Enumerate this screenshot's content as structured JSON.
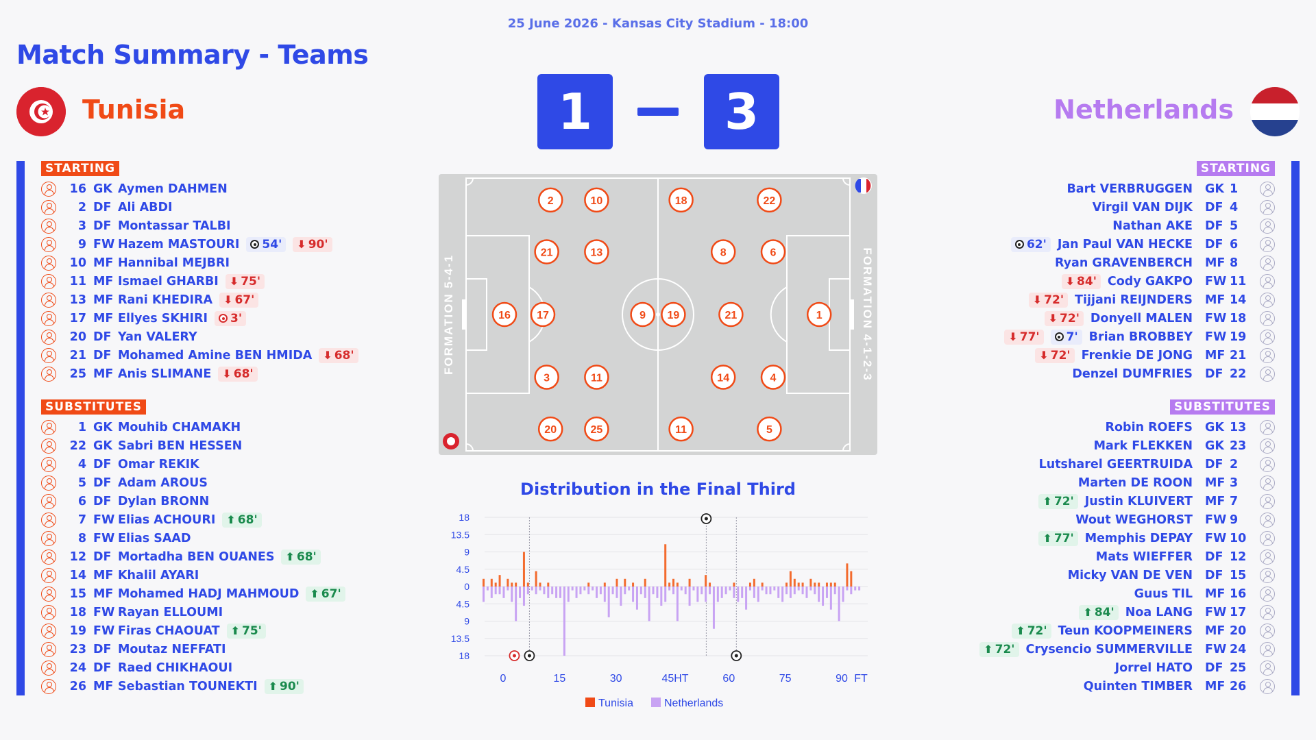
{
  "match": {
    "meta": "25 June 2026 - Kansas City Stadium - 18:00",
    "title": "Match Summary - Teams",
    "home_name": "Tunisia",
    "away_name": "Netherlands",
    "home_score": "1",
    "away_score": "3"
  },
  "labels": {
    "home_starting": "STARTING",
    "home_subs": "SUBSTITUTES",
    "away_starting": "STARTING",
    "away_subs": "SUBSTITUTES"
  },
  "colors": {
    "accent": "#2f49e6",
    "home": "#f04a16",
    "away": "#b67bf0"
  },
  "home": {
    "starting": [
      {
        "num": "16",
        "pos": "GK",
        "name": "Aymen DAHMEN",
        "events": []
      },
      {
        "num": "2",
        "pos": "DF",
        "name": "Ali ABDI",
        "events": []
      },
      {
        "num": "3",
        "pos": "DF",
        "name": "Montassar TALBI",
        "events": []
      },
      {
        "num": "9",
        "pos": "FW",
        "name": "Hazem MASTOURI",
        "events": [
          {
            "type": "goal",
            "text": "54'"
          },
          {
            "type": "out",
            "text": "90'"
          }
        ]
      },
      {
        "num": "10",
        "pos": "MF",
        "name": "Hannibal MEJBRI",
        "events": []
      },
      {
        "num": "11",
        "pos": "MF",
        "name": "Ismael GHARBI",
        "events": [
          {
            "type": "out",
            "text": "75'"
          }
        ]
      },
      {
        "num": "13",
        "pos": "MF",
        "name": "Rani KHEDIRA",
        "events": [
          {
            "type": "out",
            "text": "67'"
          }
        ]
      },
      {
        "num": "17",
        "pos": "MF",
        "name": "Ellyes SKHIRI",
        "events": [
          {
            "type": "og",
            "text": "3'"
          }
        ]
      },
      {
        "num": "20",
        "pos": "DF",
        "name": "Yan VALERY",
        "events": []
      },
      {
        "num": "21",
        "pos": "DF",
        "name": "Mohamed Amine BEN HMIDA",
        "events": [
          {
            "type": "out",
            "text": "68'"
          }
        ]
      },
      {
        "num": "25",
        "pos": "MF",
        "name": "Anis SLIMANE",
        "events": [
          {
            "type": "out",
            "text": "68'"
          }
        ]
      }
    ],
    "subs": [
      {
        "num": "1",
        "pos": "GK",
        "name": "Mouhib CHAMAKH",
        "events": []
      },
      {
        "num": "22",
        "pos": "GK",
        "name": "Sabri BEN HESSEN",
        "events": []
      },
      {
        "num": "4",
        "pos": "DF",
        "name": "Omar REKIK",
        "events": []
      },
      {
        "num": "5",
        "pos": "DF",
        "name": "Adam AROUS",
        "events": []
      },
      {
        "num": "6",
        "pos": "DF",
        "name": "Dylan BRONN",
        "events": []
      },
      {
        "num": "7",
        "pos": "FW",
        "name": "Elias ACHOURI",
        "events": [
          {
            "type": "in",
            "text": "68'"
          }
        ]
      },
      {
        "num": "8",
        "pos": "FW",
        "name": "Elias SAAD",
        "events": []
      },
      {
        "num": "12",
        "pos": "DF",
        "name": "Mortadha BEN OUANES",
        "events": [
          {
            "type": "in",
            "text": "68'"
          }
        ]
      },
      {
        "num": "14",
        "pos": "MF",
        "name": "Khalil AYARI",
        "events": []
      },
      {
        "num": "15",
        "pos": "MF",
        "name": "Mohamed HADJ MAHMOUD",
        "events": [
          {
            "type": "in",
            "text": "67'"
          }
        ]
      },
      {
        "num": "18",
        "pos": "FW",
        "name": "Rayan ELLOUMI",
        "events": []
      },
      {
        "num": "19",
        "pos": "FW",
        "name": "Firas CHAOUAT",
        "events": [
          {
            "type": "in",
            "text": "75'"
          }
        ]
      },
      {
        "num": "23",
        "pos": "DF",
        "name": "Moutaz NEFFATI",
        "events": []
      },
      {
        "num": "24",
        "pos": "DF",
        "name": "Raed CHIKHAOUI",
        "events": []
      },
      {
        "num": "26",
        "pos": "MF",
        "name": "Sebastian TOUNEKTI",
        "events": [
          {
            "type": "in",
            "text": "90'"
          }
        ]
      }
    ]
  },
  "away": {
    "starting": [
      {
        "num": "1",
        "pos": "GK",
        "name": "Bart VERBRUGGEN",
        "events": []
      },
      {
        "num": "4",
        "pos": "DF",
        "name": "Virgil VAN DIJK",
        "events": []
      },
      {
        "num": "5",
        "pos": "DF",
        "name": "Nathan AKE",
        "events": []
      },
      {
        "num": "6",
        "pos": "DF",
        "name": "Jan Paul VAN HECKE",
        "events": [
          {
            "type": "goal",
            "text": "62'"
          }
        ]
      },
      {
        "num": "8",
        "pos": "MF",
        "name": "Ryan GRAVENBERCH",
        "events": []
      },
      {
        "num": "11",
        "pos": "FW",
        "name": "Cody GAKPO",
        "events": [
          {
            "type": "out",
            "text": "84'"
          }
        ]
      },
      {
        "num": "14",
        "pos": "MF",
        "name": "Tijjani REIJNDERS",
        "events": [
          {
            "type": "out",
            "text": "72'"
          }
        ]
      },
      {
        "num": "18",
        "pos": "FW",
        "name": "Donyell MALEN",
        "events": [
          {
            "type": "out",
            "text": "72'"
          }
        ]
      },
      {
        "num": "19",
        "pos": "FW",
        "name": "Brian BROBBEY",
        "events": [
          {
            "type": "out",
            "text": "77'"
          },
          {
            "type": "goal",
            "text": "7'"
          }
        ]
      },
      {
        "num": "21",
        "pos": "MF",
        "name": "Frenkie DE JONG",
        "events": [
          {
            "type": "out",
            "text": "72'"
          }
        ]
      },
      {
        "num": "22",
        "pos": "DF",
        "name": "Denzel DUMFRIES",
        "events": []
      }
    ],
    "subs": [
      {
        "num": "13",
        "pos": "GK",
        "name": "Robin ROEFS",
        "events": []
      },
      {
        "num": "23",
        "pos": "GK",
        "name": "Mark FLEKKEN",
        "events": []
      },
      {
        "num": "2",
        "pos": "DF",
        "name": "Lutsharel GEERTRUIDA",
        "events": []
      },
      {
        "num": "3",
        "pos": "MF",
        "name": "Marten DE ROON",
        "events": []
      },
      {
        "num": "7",
        "pos": "MF",
        "name": "Justin KLUIVERT",
        "events": [
          {
            "type": "in",
            "text": "72'"
          }
        ]
      },
      {
        "num": "9",
        "pos": "FW",
        "name": "Wout WEGHORST",
        "events": []
      },
      {
        "num": "10",
        "pos": "FW",
        "name": "Memphis DEPAY",
        "events": [
          {
            "type": "in",
            "text": "77'"
          }
        ]
      },
      {
        "num": "12",
        "pos": "DF",
        "name": "Mats WIEFFER",
        "events": []
      },
      {
        "num": "15",
        "pos": "DF",
        "name": "Micky VAN DE VEN",
        "events": []
      },
      {
        "num": "16",
        "pos": "MF",
        "name": "Guus TIL",
        "events": []
      },
      {
        "num": "17",
        "pos": "FW",
        "name": "Noa LANG",
        "events": [
          {
            "type": "in",
            "text": "84'"
          }
        ]
      },
      {
        "num": "20",
        "pos": "MF",
        "name": "Teun KOOPMEINERS",
        "events": [
          {
            "type": "in",
            "text": "72'"
          }
        ]
      },
      {
        "num": "24",
        "pos": "FW",
        "name": "Crysencio SUMMERVILLE",
        "events": [
          {
            "type": "in",
            "text": "72'"
          }
        ]
      },
      {
        "num": "25",
        "pos": "DF",
        "name": "Jorrel HATO",
        "events": []
      },
      {
        "num": "26",
        "pos": "MF",
        "name": "Quinten TIMBER",
        "events": []
      }
    ]
  },
  "formation": {
    "home_label": "FORMATION 5-4-1",
    "away_label": "FORMATION 4-1-2-3",
    "home_players": [
      {
        "num": "16",
        "fx": 0.1,
        "fy": 0.5
      },
      {
        "num": "17",
        "fx": 0.2,
        "fy": 0.5
      },
      {
        "num": "21",
        "fx": 0.21,
        "fy": 0.27
      },
      {
        "num": "3",
        "fx": 0.21,
        "fy": 0.73
      },
      {
        "num": "2",
        "fx": 0.22,
        "fy": 0.08
      },
      {
        "num": "20",
        "fx": 0.22,
        "fy": 0.92
      },
      {
        "num": "13",
        "fx": 0.34,
        "fy": 0.27
      },
      {
        "num": "10",
        "fx": 0.34,
        "fy": 0.08
      },
      {
        "num": "11",
        "fx": 0.34,
        "fy": 0.73
      },
      {
        "num": "25",
        "fx": 0.34,
        "fy": 0.92
      },
      {
        "num": "9",
        "fx": 0.46,
        "fy": 0.5
      }
    ],
    "away_players": [
      {
        "num": "1",
        "fx": 0.92,
        "fy": 0.5
      },
      {
        "num": "6",
        "fx": 0.8,
        "fy": 0.27
      },
      {
        "num": "4",
        "fx": 0.8,
        "fy": 0.73
      },
      {
        "num": "22",
        "fx": 0.79,
        "fy": 0.08
      },
      {
        "num": "5",
        "fx": 0.79,
        "fy": 0.92
      },
      {
        "num": "21",
        "fx": 0.69,
        "fy": 0.5
      },
      {
        "num": "8",
        "fx": 0.67,
        "fy": 0.27
      },
      {
        "num": "14",
        "fx": 0.67,
        "fy": 0.73
      },
      {
        "num": "18",
        "fx": 0.56,
        "fy": 0.08
      },
      {
        "num": "11",
        "fx": 0.56,
        "fy": 0.92
      },
      {
        "num": "19",
        "fx": 0.54,
        "fy": 0.5
      }
    ]
  },
  "chart_data": {
    "type": "bar",
    "title": "Distribution in the Final Third",
    "x_ticks": [
      "0",
      "15",
      "30",
      "45HT",
      "60",
      "75",
      "90",
      "FT"
    ],
    "y_ticks": [
      "18",
      "13.5",
      "9",
      "4.5",
      "0",
      "4.5",
      "9",
      "13.5",
      "18"
    ],
    "ylim": [
      -18,
      18
    ],
    "legend": [
      "Tunisia",
      "Netherlands"
    ],
    "series": [
      {
        "name": "Tunisia",
        "values": [
          2,
          0,
          2,
          1,
          3,
          0,
          2,
          1,
          1,
          0,
          9,
          1,
          0,
          4,
          1,
          0,
          1,
          0,
          0,
          0,
          0,
          0,
          0,
          0,
          0,
          0,
          1,
          0,
          0,
          0,
          1,
          0,
          0,
          2,
          0,
          2,
          0,
          1,
          0,
          0,
          2,
          0,
          0,
          0,
          0,
          11,
          1,
          2,
          1,
          0,
          0,
          2,
          0,
          0,
          0,
          3,
          1,
          0,
          0,
          0,
          0,
          0,
          1,
          0,
          0,
          0,
          1,
          2,
          0,
          1,
          0,
          0,
          0,
          0,
          0,
          1,
          4,
          2,
          1,
          1,
          0,
          2,
          1,
          1,
          0,
          1,
          1,
          1,
          0,
          0,
          6,
          4,
          0,
          0
        ],
        "minutes_start": 0
      },
      {
        "name": "Netherlands",
        "values": [
          -4,
          -1,
          -3,
          -2,
          -2,
          -3,
          -1,
          -4,
          -9,
          -3,
          -5,
          -2,
          -1,
          -2,
          -1,
          -2,
          -3,
          -2,
          -3,
          -3,
          -18,
          -4,
          -1,
          -3,
          -2,
          -1,
          -2,
          -1,
          -3,
          -2,
          -4,
          -8,
          -2,
          -3,
          -5,
          -2,
          -1,
          -4,
          -6,
          -2,
          -3,
          -9,
          -2,
          -3,
          -5,
          -4,
          -1,
          -2,
          -9,
          -1,
          -2,
          -5,
          -1,
          -4,
          -2,
          -4,
          -2,
          -11,
          -4,
          -3,
          -2,
          -1,
          -3,
          -4,
          -3,
          -6,
          -1,
          -3,
          -4,
          -1,
          -2,
          -2,
          -1,
          -3,
          -4,
          -2,
          -3,
          -2,
          -1,
          -2,
          -3,
          -1,
          -2,
          -4,
          -5,
          -3,
          -6,
          -2,
          -9,
          -4,
          -1,
          -2,
          -1,
          -1
        ],
        "minutes_start": 0
      }
    ],
    "markers": [
      {
        "minute": 3,
        "side": "bottom",
        "kind": "own-goal"
      },
      {
        "minute": 7,
        "side": "bottom",
        "kind": "goal"
      },
      {
        "minute": 54,
        "side": "top",
        "kind": "goal"
      },
      {
        "minute": 62,
        "side": "bottom",
        "kind": "goal"
      }
    ]
  }
}
